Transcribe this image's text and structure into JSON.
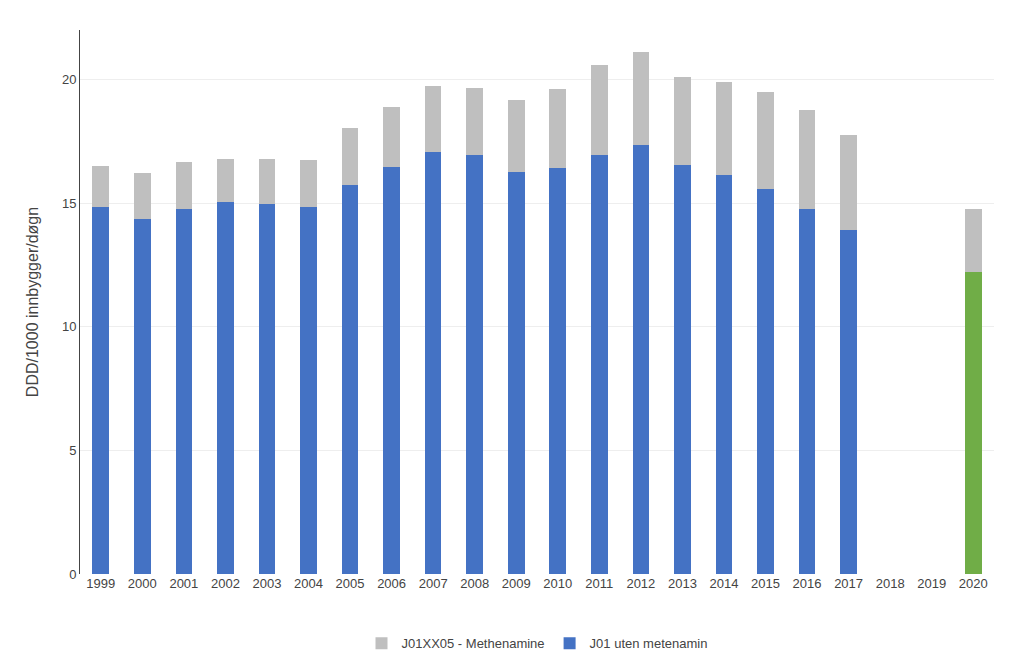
{
  "chart_data": {
    "type": "bar",
    "stacked": true,
    "categories": [
      "1999",
      "2000",
      "2001",
      "2002",
      "2003",
      "2004",
      "2005",
      "2006",
      "2007",
      "2008",
      "2009",
      "2010",
      "2011",
      "2012",
      "2013",
      "2014",
      "2015",
      "2016",
      "2017",
      "2018",
      "2019",
      "2020"
    ],
    "series": [
      {
        "name": "J01 uten metenamin",
        "colors": [
          "#4472C4",
          "#4472C4",
          "#4472C4",
          "#4472C4",
          "#4472C4",
          "#4472C4",
          "#4472C4",
          "#4472C4",
          "#4472C4",
          "#4472C4",
          "#4472C4",
          "#4472C4",
          "#4472C4",
          "#4472C4",
          "#4472C4",
          "#4472C4",
          "#4472C4",
          "#4472C4",
          "#4472C4",
          "#4472C4",
          "#4472C4",
          "#70AD47"
        ],
        "values": [
          14.85,
          14.35,
          14.75,
          15.05,
          14.95,
          14.85,
          15.75,
          16.45,
          17.05,
          16.95,
          16.25,
          16.4,
          16.95,
          17.35,
          16.55,
          16.15,
          15.55,
          14.75,
          13.9,
          0,
          0,
          12.2
        ]
      },
      {
        "name": "J01XX05 - Methenamine",
        "color": "#BFBFBF",
        "values": [
          1.65,
          1.85,
          1.9,
          1.75,
          1.85,
          1.9,
          2.3,
          2.45,
          2.7,
          2.7,
          2.9,
          3.2,
          3.65,
          3.75,
          3.55,
          3.75,
          3.95,
          4.0,
          3.85,
          0,
          0,
          2.55
        ]
      }
    ],
    "ylabel": "DDD/1000 innbygger/døgn",
    "ylim": [
      0,
      22
    ],
    "yticks": [
      0,
      5,
      10,
      15,
      20
    ],
    "grid": true,
    "legend": "bottom"
  }
}
